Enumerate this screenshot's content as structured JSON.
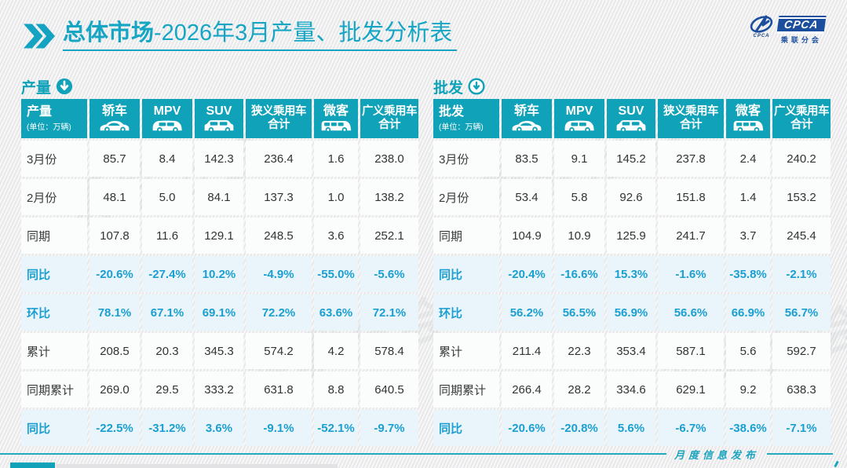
{
  "page": {
    "title_bold": "总体市场",
    "title_rest": "-2026年3月产量、批发分析表",
    "footer_text": "月度信息发布"
  },
  "logo": {
    "brand": "CPCA",
    "brand_cn": "乘联分会",
    "caption": "CPCA"
  },
  "colors": {
    "accent_teal": "#0fa2b9",
    "title_text": "#16a6c4",
    "highlight_bg": "#e9f5fb",
    "highlight_text": "#1b9fd1",
    "logo_blue": "#1b4f9e",
    "number_text": "#333333"
  },
  "tables": [
    {
      "key": "production",
      "section_label": "产量",
      "arrow_style": "filled",
      "first_header": {
        "title": "产量",
        "unit": "(单位：万辆)"
      },
      "columns": [
        {
          "key": "sedan",
          "label": "轿车",
          "icon": "sedan"
        },
        {
          "key": "mpv",
          "label": "MPV",
          "icon": "mpv"
        },
        {
          "key": "suv",
          "label": "SUV",
          "icon": "suv"
        },
        {
          "key": "narrow-total",
          "label": "狭义乘用车合计",
          "lines": [
            "狭义乘用车",
            "合计"
          ]
        },
        {
          "key": "microvan",
          "label": "微客",
          "icon": "microvan"
        },
        {
          "key": "broad-total",
          "label": "广义乘用车合计",
          "lines": [
            "广义乘用车",
            "合计"
          ]
        }
      ],
      "rows": [
        {
          "label": "3月份",
          "highlight": false,
          "values": [
            "85.7",
            "8.4",
            "142.3",
            "236.4",
            "1.6",
            "238.0"
          ]
        },
        {
          "label": "2月份",
          "highlight": false,
          "values": [
            "48.1",
            "5.0",
            "84.1",
            "137.3",
            "1.0",
            "138.2"
          ]
        },
        {
          "label": "同期",
          "highlight": false,
          "values": [
            "107.8",
            "11.6",
            "129.1",
            "248.5",
            "3.6",
            "252.1"
          ]
        },
        {
          "label": "同比",
          "highlight": true,
          "values": [
            "-20.6%",
            "-27.4%",
            "10.2%",
            "-4.9%",
            "-55.0%",
            "-5.6%"
          ]
        },
        {
          "label": "环比",
          "highlight": true,
          "values": [
            "78.1%",
            "67.1%",
            "69.1%",
            "72.2%",
            "63.6%",
            "72.1%"
          ]
        },
        {
          "label": "累计",
          "highlight": false,
          "values": [
            "208.5",
            "20.3",
            "345.3",
            "574.2",
            "4.2",
            "578.4"
          ]
        },
        {
          "label": "同期累计",
          "highlight": false,
          "values": [
            "269.0",
            "29.5",
            "333.2",
            "631.8",
            "8.8",
            "640.5"
          ]
        },
        {
          "label": "同比",
          "highlight": true,
          "values": [
            "-22.5%",
            "-31.2%",
            "3.6%",
            "-9.1%",
            "-52.1%",
            "-9.7%"
          ]
        }
      ]
    },
    {
      "key": "wholesale",
      "section_label": "批发",
      "arrow_style": "outline",
      "first_header": {
        "title": "批发",
        "unit": "(单位：万辆)"
      },
      "columns": [
        {
          "key": "sedan",
          "label": "轿车",
          "icon": "sedan"
        },
        {
          "key": "mpv",
          "label": "MPV",
          "icon": "mpv"
        },
        {
          "key": "suv",
          "label": "SUV",
          "icon": "suv"
        },
        {
          "key": "narrow-total",
          "label": "狭义乘用车合计",
          "lines": [
            "狭义乘用车",
            "合计"
          ]
        },
        {
          "key": "microvan",
          "label": "微客",
          "icon": "microvan"
        },
        {
          "key": "broad-total",
          "label": "广义乘用车合计",
          "lines": [
            "广义乘用车",
            "合计"
          ]
        }
      ],
      "rows": [
        {
          "label": "3月份",
          "highlight": false,
          "values": [
            "83.5",
            "9.1",
            "145.2",
            "237.8",
            "2.4",
            "240.2"
          ]
        },
        {
          "label": "2月份",
          "highlight": false,
          "values": [
            "53.4",
            "5.8",
            "92.6",
            "151.8",
            "1.4",
            "153.2"
          ]
        },
        {
          "label": "同期",
          "highlight": false,
          "values": [
            "104.9",
            "10.9",
            "125.9",
            "241.7",
            "3.7",
            "245.4"
          ]
        },
        {
          "label": "同比",
          "highlight": true,
          "values": [
            "-20.4%",
            "-16.6%",
            "15.3%",
            "-1.6%",
            "-35.8%",
            "-2.1%"
          ]
        },
        {
          "label": "环比",
          "highlight": true,
          "values": [
            "56.2%",
            "56.5%",
            "56.9%",
            "56.6%",
            "66.9%",
            "56.7%"
          ]
        },
        {
          "label": "累计",
          "highlight": false,
          "values": [
            "211.4",
            "22.3",
            "353.4",
            "587.1",
            "5.6",
            "592.7"
          ]
        },
        {
          "label": "同期累计",
          "highlight": false,
          "values": [
            "266.4",
            "28.2",
            "334.6",
            "629.1",
            "9.2",
            "638.3"
          ]
        },
        {
          "label": "同比",
          "highlight": true,
          "values": [
            "-20.6%",
            "-20.8%",
            "5.6%",
            "-6.7%",
            "-38.6%",
            "-7.1%"
          ]
        }
      ]
    }
  ],
  "watermark_text": "乘联分会"
}
